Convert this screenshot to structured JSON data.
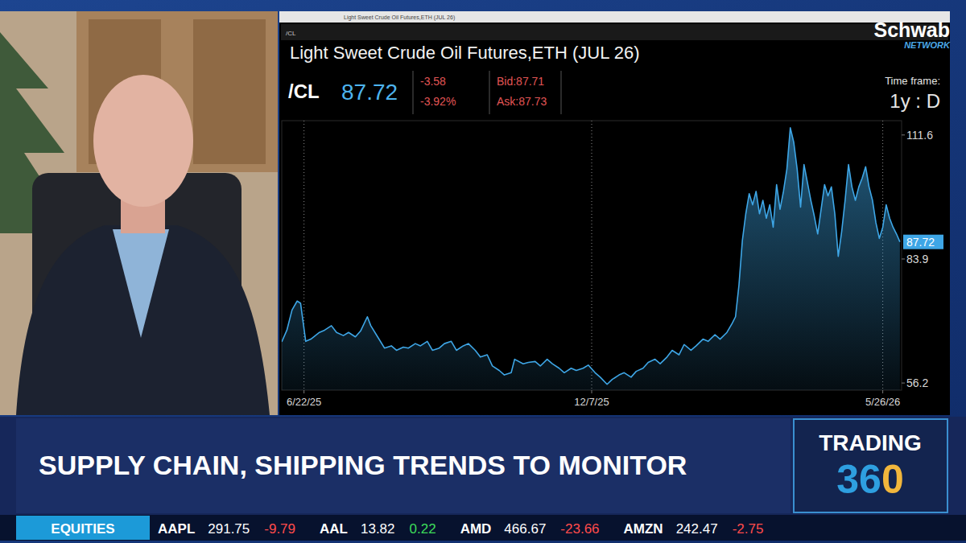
{
  "chart_data": {
    "type": "area",
    "title": "Light Sweet Crude Oil Futures,ETH (JUL 26)",
    "symbol": "/CL",
    "last": 87.72,
    "change": -3.58,
    "change_pct_label": "-3.92%",
    "bid": "Bid:87.71",
    "ask": "Ask:87.73",
    "time_frame_label": "Time frame:",
    "time_frame": "1y : D",
    "color": "#3ea6e6",
    "x": [
      "2025-06-09",
      "2025-06-12",
      "2025-06-15",
      "2025-06-18",
      "2025-06-20",
      "2025-06-23",
      "2025-06-26",
      "2025-07-01",
      "2025-07-04",
      "2025-07-08",
      "2025-07-11",
      "2025-07-15",
      "2025-07-18",
      "2025-07-22",
      "2025-07-25",
      "2025-07-29",
      "2025-07-31",
      "2025-08-04",
      "2025-08-08",
      "2025-08-12",
      "2025-08-15",
      "2025-08-19",
      "2025-08-22",
      "2025-08-26",
      "2025-08-29",
      "2025-09-02",
      "2025-09-05",
      "2025-09-09",
      "2025-09-12",
      "2025-09-16",
      "2025-09-19",
      "2025-09-23",
      "2025-09-26",
      "2025-09-30",
      "2025-10-03",
      "2025-10-07",
      "2025-10-10",
      "2025-10-14",
      "2025-10-17",
      "2025-10-21",
      "2025-10-23",
      "2025-10-28",
      "2025-10-31",
      "2025-11-04",
      "2025-11-07",
      "2025-11-11",
      "2025-11-14",
      "2025-11-18",
      "2025-11-21",
      "2025-11-25",
      "2025-11-28",
      "2025-12-02",
      "2025-12-05",
      "2025-12-09",
      "2025-12-12",
      "2025-12-16",
      "2025-12-19",
      "2025-12-23",
      "2025-12-26",
      "2025-12-30",
      "2026-01-02",
      "2026-01-06",
      "2026-01-09",
      "2026-01-13",
      "2026-01-16",
      "2026-01-20",
      "2026-01-23",
      "2026-01-27",
      "2026-01-30",
      "2026-02-03",
      "2026-02-06",
      "2026-02-10",
      "2026-02-13",
      "2026-02-17",
      "2026-02-20",
      "2026-02-24",
      "2026-02-27",
      "2026-03-01",
      "2026-03-03",
      "2026-03-05",
      "2026-03-07",
      "2026-03-09",
      "2026-03-11",
      "2026-03-13",
      "2026-03-15",
      "2026-03-17",
      "2026-03-19",
      "2026-03-21",
      "2026-03-23",
      "2026-03-25",
      "2026-03-27",
      "2026-03-29",
      "2026-03-31",
      "2026-04-02",
      "2026-04-04",
      "2026-04-06",
      "2026-04-08",
      "2026-04-10",
      "2026-04-12",
      "2026-04-14",
      "2026-04-16",
      "2026-04-18",
      "2026-04-20",
      "2026-04-22",
      "2026-04-24",
      "2026-04-26",
      "2026-04-28",
      "2026-04-30",
      "2026-05-02",
      "2026-05-04",
      "2026-05-06",
      "2026-05-08",
      "2026-05-10",
      "2026-05-12",
      "2026-05-14",
      "2026-05-16",
      "2026-05-18",
      "2026-05-20",
      "2026-05-22",
      "2026-05-24",
      "2026-05-26",
      "2026-05-28",
      "2026-05-30",
      "2026-06-01",
      "2026-06-03",
      "2026-06-05"
    ],
    "values": [
      65.4,
      68,
      72.5,
      74.5,
      74,
      65.5,
      66,
      67.5,
      68,
      69,
      67.5,
      66.8,
      67.5,
      66.5,
      67.8,
      71,
      69,
      66.5,
      64,
      64.5,
      63.5,
      64.2,
      64,
      65,
      64.5,
      65.5,
      63.5,
      64,
      65,
      65.5,
      63.5,
      64.5,
      65,
      63.5,
      62,
      62.5,
      60,
      59,
      58,
      58.5,
      61.5,
      60.5,
      60.8,
      61,
      60,
      61.5,
      60.5,
      59.5,
      58.5,
      59.5,
      59,
      59.5,
      60.2,
      58.5,
      57.5,
      55.9,
      57,
      58,
      58.5,
      57.5,
      58.8,
      59.5,
      60.8,
      61.5,
      60.5,
      62,
      63.5,
      62.5,
      64.8,
      63.5,
      64.5,
      66,
      65.5,
      67,
      66,
      67.5,
      69.5,
      71,
      78,
      88,
      94,
      98.5,
      96,
      99,
      94,
      97,
      93,
      96,
      91,
      100.5,
      95,
      99,
      104,
      113.2,
      110,
      104,
      95.5,
      105,
      101,
      97,
      93.5,
      89.5,
      95,
      100.5,
      98,
      100,
      94,
      84.5,
      90,
      97,
      105,
      100,
      97,
      100,
      102,
      104.5,
      100,
      97,
      92,
      88.5,
      91,
      96,
      93,
      91,
      89.5,
      87.72
    ],
    "xlim": [
      "2025-06-09",
      "2026-06-06"
    ],
    "xticks": [
      {
        "value": "2025-06-22",
        "label": "6/22/25"
      },
      {
        "value": "2025-12-07",
        "label": "12/7/25"
      },
      {
        "value": "2026-05-26",
        "label": "5/26/26"
      }
    ],
    "ylim": [
      54.6,
      114.8
    ],
    "yticks": [
      56.2,
      83.9,
      111.6
    ],
    "grid": true
  },
  "broadcast": {
    "network": "Schwab",
    "network_sub": "NETWORK",
    "headline": "SUPPLY CHAIN, SHIPPING TRENDS TO MONITOR",
    "show": "TRADING",
    "show_number": "360",
    "ticker_label": "EQUITIES",
    "ticker": [
      {
        "symbol": "AAPL",
        "price": 291.75,
        "change": -9.79
      },
      {
        "symbol": "AAL",
        "price": 13.82,
        "change": 0.22
      },
      {
        "symbol": "AMD",
        "price": 466.67,
        "change": -23.66
      },
      {
        "symbol": "AMZN",
        "price": 242.47,
        "change": -2.75
      }
    ]
  }
}
